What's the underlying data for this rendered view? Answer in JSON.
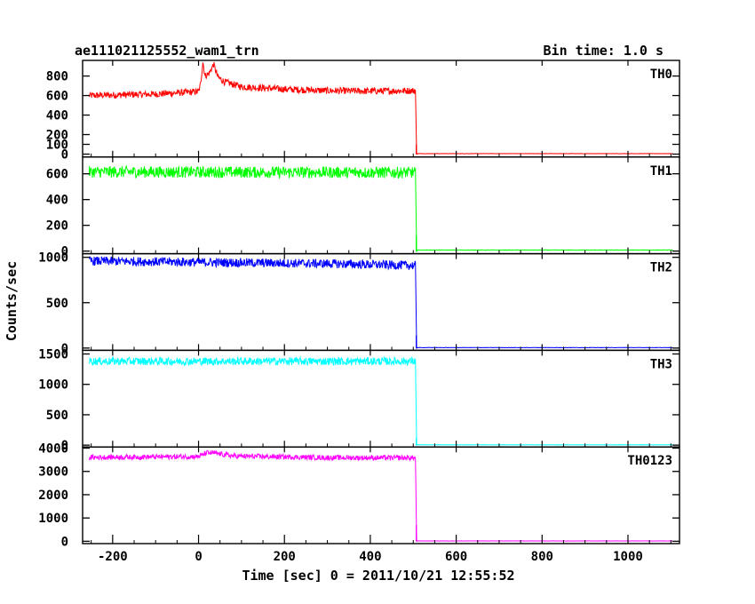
{
  "chart_data": {
    "type": "line",
    "title": "ae111021125552_wam1_trn",
    "subtitle": "Bin time: 1.0 s",
    "xlabel": "Time [sec] 0 = 2011/10/21 12:55:52",
    "ylabel": "Counts/sec",
    "xlim": [
      -270,
      1120
    ],
    "xticks": [
      -200,
      0,
      200,
      400,
      600,
      800,
      1000
    ],
    "grid": false,
    "panels": [
      {
        "name": "TH0",
        "color": "#ff0000",
        "ylim": [
          -30,
          960
        ],
        "yticks": [
          0,
          100,
          200,
          400,
          600,
          800
        ],
        "series": [
          {
            "x": -255,
            "y": 600
          },
          {
            "x": -200,
            "y": 605
          },
          {
            "x": -100,
            "y": 615
          },
          {
            "x": 0,
            "y": 640
          },
          {
            "x": 5,
            "y": 720
          },
          {
            "x": 10,
            "y": 950
          },
          {
            "x": 15,
            "y": 800
          },
          {
            "x": 25,
            "y": 830
          },
          {
            "x": 35,
            "y": 920
          },
          {
            "x": 45,
            "y": 790
          },
          {
            "x": 60,
            "y": 740
          },
          {
            "x": 100,
            "y": 690
          },
          {
            "x": 200,
            "y": 665
          },
          {
            "x": 300,
            "y": 650
          },
          {
            "x": 400,
            "y": 645
          },
          {
            "x": 505,
            "y": 650
          },
          {
            "x": 508,
            "y": 0
          },
          {
            "x": 510,
            "y": 5
          },
          {
            "x": 1105,
            "y": 5
          }
        ],
        "noise": 70,
        "spikes": [
          {
            "x": 505,
            "y": 100
          }
        ]
      },
      {
        "name": "TH1",
        "color": "#00ff00",
        "ylim": [
          -20,
          730
        ],
        "yticks": [
          0,
          200,
          400,
          600
        ],
        "series": [
          {
            "x": -255,
            "y": 615
          },
          {
            "x": 505,
            "y": 610
          },
          {
            "x": 508,
            "y": 0
          },
          {
            "x": 510,
            "y": 8
          },
          {
            "x": 1105,
            "y": 8
          }
        ],
        "noise": 90,
        "spikes": [
          {
            "x": 505,
            "y": 120
          }
        ]
      },
      {
        "name": "TH2",
        "color": "#0000ff",
        "ylim": [
          -25,
          1040
        ],
        "yticks": [
          0,
          500,
          1000
        ],
        "series": [
          {
            "x": -255,
            "y": 960
          },
          {
            "x": 300,
            "y": 930
          },
          {
            "x": 505,
            "y": 910
          },
          {
            "x": 508,
            "y": 0
          },
          {
            "x": 510,
            "y": 5
          },
          {
            "x": 1105,
            "y": 5
          }
        ],
        "noise": 100,
        "spikes": [
          {
            "x": 505,
            "y": 140
          }
        ]
      },
      {
        "name": "TH3",
        "color": "#00ffff",
        "ylim": [
          -30,
          1560
        ],
        "yticks": [
          0,
          500,
          1000,
          1500
        ],
        "series": [
          {
            "x": -255,
            "y": 1380
          },
          {
            "x": 505,
            "y": 1380
          },
          {
            "x": 508,
            "y": 0
          },
          {
            "x": 510,
            "y": 5
          },
          {
            "x": 1105,
            "y": 5
          }
        ],
        "noise": 130,
        "spikes": [
          {
            "x": 505,
            "y": 120
          }
        ]
      },
      {
        "name": "TH0123",
        "color": "#ff00ff",
        "ylim": [
          -100,
          4050
        ],
        "yticks": [
          0,
          1000,
          2000,
          3000,
          4000
        ],
        "series": [
          {
            "x": -255,
            "y": 3600
          },
          {
            "x": 0,
            "y": 3640
          },
          {
            "x": 20,
            "y": 3800
          },
          {
            "x": 40,
            "y": 3780
          },
          {
            "x": 80,
            "y": 3660
          },
          {
            "x": 300,
            "y": 3590
          },
          {
            "x": 505,
            "y": 3580
          },
          {
            "x": 508,
            "y": 0
          },
          {
            "x": 510,
            "y": 15
          },
          {
            "x": 1105,
            "y": 15
          }
        ],
        "noise": 220,
        "spikes": [
          {
            "x": 505,
            "y": 700
          }
        ]
      }
    ]
  }
}
